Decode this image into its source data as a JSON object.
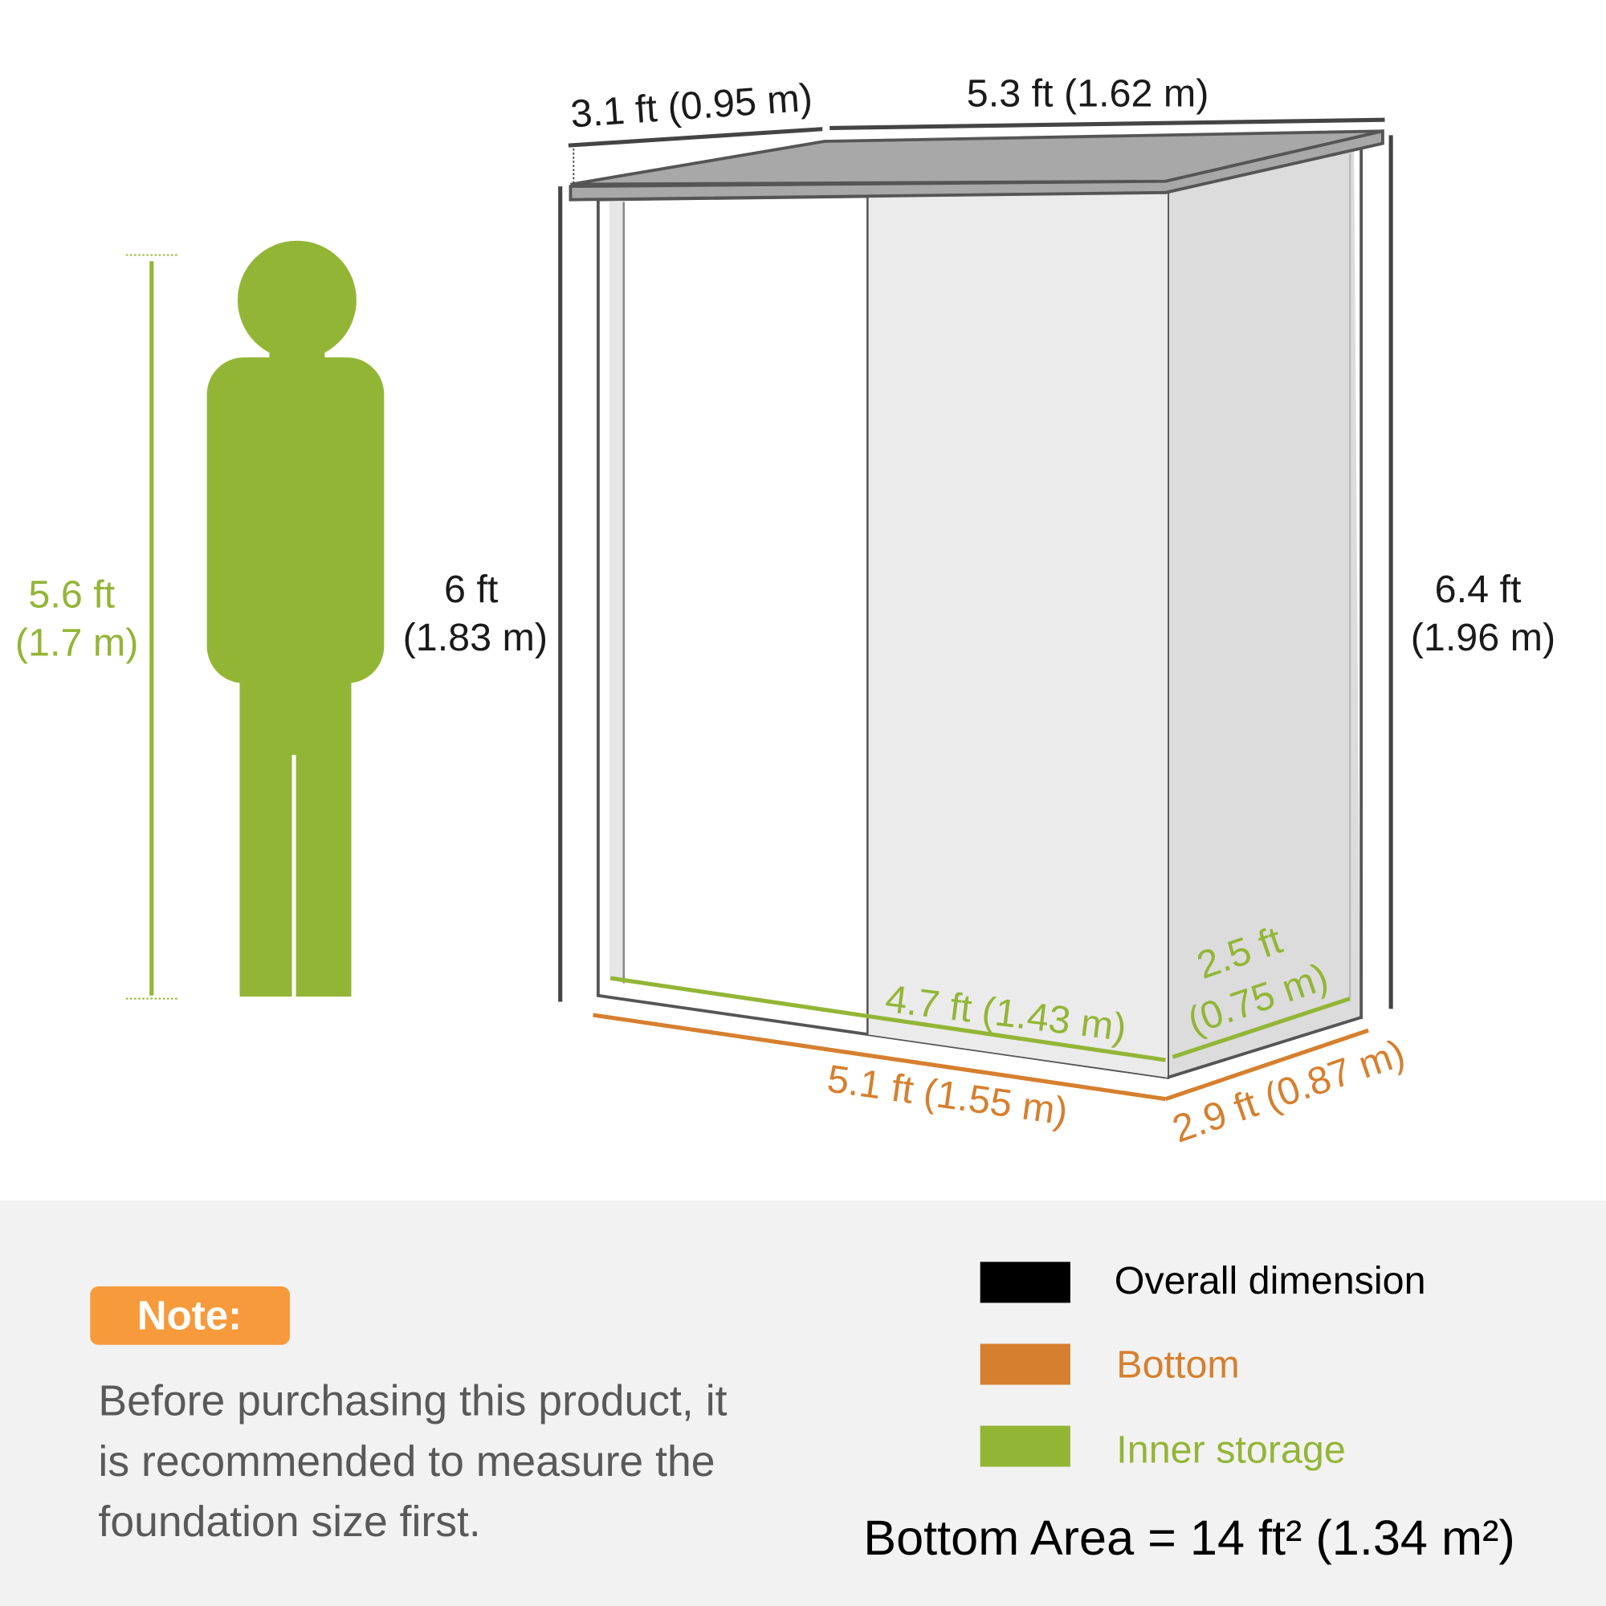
{
  "colors": {
    "overall": "#000000",
    "bottom": "#d67f2e",
    "inner": "#93b536",
    "note_badge": "#f79a3c",
    "panel_bg": "#f2f2f2",
    "roof": "#a8a8a8"
  },
  "person": {
    "height_ft": "5.6 ft",
    "height_m": "(1.7 m)"
  },
  "dimensions": {
    "roof_depth": "3.1 ft (0.95 m)",
    "roof_width": "5.3 ft (1.62 m)",
    "front_height_ft": "6 ft",
    "front_height_m": "(1.83 m)",
    "back_height_ft": "6.4 ft",
    "back_height_m": "(1.96 m)",
    "bottom_width": "5.1 ft (1.55 m)",
    "bottom_depth": "2.9 ft (0.87 m)",
    "inner_width": "4.7 ft (1.43 m)",
    "inner_depth_ft": "2.5 ft",
    "inner_depth_m": "(0.75 m)"
  },
  "note": {
    "label": "Note:",
    "lines": [
      "Before purchasing this product, it",
      "is recommended to measure the",
      "foundation size first."
    ]
  },
  "legend": [
    {
      "label": "Overall dimension",
      "color": "#000000"
    },
    {
      "label": "Bottom",
      "color": "#d67f2e"
    },
    {
      "label": "Inner storage",
      "color": "#93b536"
    }
  ],
  "bottom_area": "Bottom Area = 14 ft² (1.34 m²)"
}
